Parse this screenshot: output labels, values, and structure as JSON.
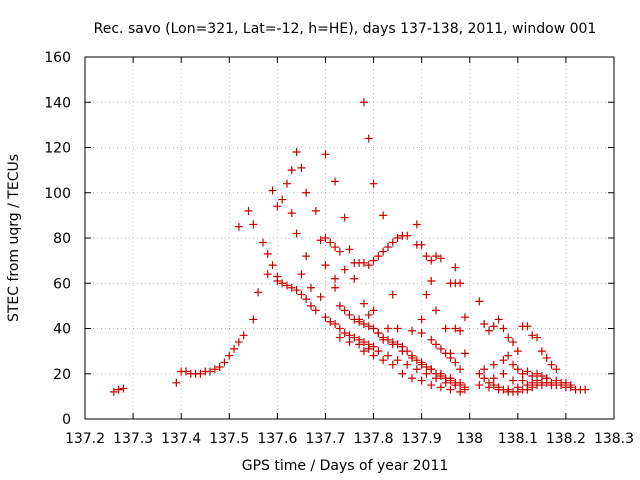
{
  "chart_data": {
    "type": "scatter",
    "title": "Rec. savo (Lon=321, Lat=-12, h=HE), days 137-138, 2011, window 001",
    "xlabel": "GPS time / Days of year 2011",
    "ylabel": "STEC from uqrg / TECUs",
    "xlim": [
      137.2,
      138.3
    ],
    "ylim": [
      0,
      160
    ],
    "xticks": [
      137.2,
      137.3,
      137.4,
      137.5,
      137.6,
      137.7,
      137.8,
      137.9,
      138,
      138.1,
      138.2,
      138.3
    ],
    "xtick_labels": [
      "137.2",
      "137.3",
      "137.4",
      "137.5",
      "137.6",
      "137.7",
      "137.8",
      "137.9",
      "138",
      "138.1",
      "138.2",
      "138.3"
    ],
    "yticks": [
      0,
      20,
      40,
      60,
      80,
      100,
      120,
      140,
      160
    ],
    "ytick_labels": [
      "0",
      "20",
      "40",
      "60",
      "80",
      "100",
      "120",
      "140",
      "160"
    ],
    "grid": true,
    "marker": "+",
    "color": "#cc0000",
    "points": [
      [
        137.26,
        12
      ],
      [
        137.27,
        13
      ],
      [
        137.28,
        13.5
      ],
      [
        137.39,
        16
      ],
      [
        137.4,
        21
      ],
      [
        137.41,
        21
      ],
      [
        137.42,
        20
      ],
      [
        137.43,
        20
      ],
      [
        137.44,
        20
      ],
      [
        137.45,
        21
      ],
      [
        137.46,
        21
      ],
      [
        137.47,
        22
      ],
      [
        137.48,
        23
      ],
      [
        137.49,
        25
      ],
      [
        137.5,
        28
      ],
      [
        137.51,
        31
      ],
      [
        137.52,
        34
      ],
      [
        137.53,
        37
      ],
      [
        137.52,
        85
      ],
      [
        137.54,
        92
      ],
      [
        137.55,
        86
      ],
      [
        137.55,
        44
      ],
      [
        137.56,
        56
      ],
      [
        137.57,
        78
      ],
      [
        137.58,
        73
      ],
      [
        137.59,
        68
      ],
      [
        137.6,
        63
      ],
      [
        137.61,
        60
      ],
      [
        137.63,
        58
      ],
      [
        137.64,
        57
      ],
      [
        137.65,
        55
      ],
      [
        137.66,
        53
      ],
      [
        137.67,
        50
      ],
      [
        137.68,
        48
      ],
      [
        137.59,
        101
      ],
      [
        137.6,
        94
      ],
      [
        137.61,
        97
      ],
      [
        137.62,
        104
      ],
      [
        137.63,
        91
      ],
      [
        137.64,
        118
      ],
      [
        137.63,
        110
      ],
      [
        137.65,
        111
      ],
      [
        137.64,
        82
      ],
      [
        137.66,
        100
      ],
      [
        137.66,
        72
      ],
      [
        137.68,
        92
      ],
      [
        137.69,
        79
      ],
      [
        137.7,
        117
      ],
      [
        137.7,
        68
      ],
      [
        137.72,
        105
      ],
      [
        137.58,
        64
      ],
      [
        137.6,
        61
      ],
      [
        137.62,
        59
      ],
      [
        137.65,
        64
      ],
      [
        137.67,
        58
      ],
      [
        137.69,
        54
      ],
      [
        137.7,
        45
      ],
      [
        137.71,
        43
      ],
      [
        137.72,
        42
      ],
      [
        137.73,
        40
      ],
      [
        137.74,
        38
      ],
      [
        137.75,
        37
      ],
      [
        137.76,
        36
      ],
      [
        137.77,
        35
      ],
      [
        137.78,
        34
      ],
      [
        137.79,
        33
      ],
      [
        137.8,
        32
      ],
      [
        137.7,
        80
      ],
      [
        137.71,
        78
      ],
      [
        137.72,
        76
      ],
      [
        137.73,
        74
      ],
      [
        137.74,
        89
      ],
      [
        137.75,
        75
      ],
      [
        137.76,
        69
      ],
      [
        137.77,
        69
      ],
      [
        137.78,
        69
      ],
      [
        137.79,
        68
      ],
      [
        137.8,
        70
      ],
      [
        137.81,
        72
      ],
      [
        137.82,
        74
      ],
      [
        137.83,
        76
      ],
      [
        137.84,
        78
      ],
      [
        137.85,
        80
      ],
      [
        137.86,
        81
      ],
      [
        137.87,
        81
      ],
      [
        137.89,
        86
      ],
      [
        137.89,
        77
      ],
      [
        137.9,
        77
      ],
      [
        137.91,
        72
      ],
      [
        137.92,
        70
      ],
      [
        137.93,
        72
      ],
      [
        137.94,
        71
      ],
      [
        137.78,
        140
      ],
      [
        137.79,
        124
      ],
      [
        137.8,
        104
      ],
      [
        137.82,
        90
      ],
      [
        137.84,
        55
      ],
      [
        137.72,
        58
      ],
      [
        137.73,
        50
      ],
      [
        137.74,
        48
      ],
      [
        137.75,
        46
      ],
      [
        137.76,
        44
      ],
      [
        137.77,
        43
      ],
      [
        137.78,
        42
      ],
      [
        137.79,
        41
      ],
      [
        137.8,
        40
      ],
      [
        137.81,
        38
      ],
      [
        137.82,
        36
      ],
      [
        137.83,
        35
      ],
      [
        137.84,
        34
      ],
      [
        137.85,
        33
      ],
      [
        137.86,
        32
      ],
      [
        137.87,
        30
      ],
      [
        137.88,
        28
      ],
      [
        137.89,
        26
      ],
      [
        137.9,
        24
      ],
      [
        137.91,
        23
      ],
      [
        137.92,
        22
      ],
      [
        137.93,
        20
      ],
      [
        137.94,
        19
      ],
      [
        137.95,
        18
      ],
      [
        137.96,
        17
      ],
      [
        137.97,
        16
      ],
      [
        137.98,
        15
      ],
      [
        137.99,
        14
      ],
      [
        137.73,
        36
      ],
      [
        137.75,
        34
      ],
      [
        137.77,
        33
      ],
      [
        137.79,
        31
      ],
      [
        137.81,
        30
      ],
      [
        137.83,
        28
      ],
      [
        137.85,
        26
      ],
      [
        137.87,
        24
      ],
      [
        137.89,
        22
      ],
      [
        137.91,
        20
      ],
      [
        137.93,
        18
      ],
      [
        137.95,
        16
      ],
      [
        137.97,
        15
      ],
      [
        137.99,
        13
      ],
      [
        137.78,
        30
      ],
      [
        137.8,
        28
      ],
      [
        137.82,
        26
      ],
      [
        137.84,
        24
      ],
      [
        137.86,
        20
      ],
      [
        137.88,
        18
      ],
      [
        137.9,
        17
      ],
      [
        137.92,
        15
      ],
      [
        137.94,
        14
      ],
      [
        137.96,
        13
      ],
      [
        137.98,
        12
      ],
      [
        137.82,
        35
      ],
      [
        137.84,
        33
      ],
      [
        137.86,
        30
      ],
      [
        137.88,
        27
      ],
      [
        137.9,
        25
      ],
      [
        137.92,
        22
      ],
      [
        137.94,
        20
      ],
      [
        137.96,
        18
      ],
      [
        137.98,
        16
      ],
      [
        137.88,
        39
      ],
      [
        137.9,
        38
      ],
      [
        137.92,
        35
      ],
      [
        137.93,
        33
      ],
      [
        137.94,
        31
      ],
      [
        137.95,
        29
      ],
      [
        137.96,
        27
      ],
      [
        137.97,
        25
      ],
      [
        137.98,
        22
      ],
      [
        137.9,
        44
      ],
      [
        137.91,
        55
      ],
      [
        137.92,
        61
      ],
      [
        137.93,
        48
      ],
      [
        137.95,
        40
      ],
      [
        137.96,
        60
      ],
      [
        137.97,
        67
      ],
      [
        137.97,
        60
      ],
      [
        137.98,
        60
      ],
      [
        137.98,
        39
      ],
      [
        137.99,
        45
      ],
      [
        137.99,
        29
      ],
      [
        137.97,
        40
      ],
      [
        137.96,
        29
      ],
      [
        137.72,
        62
      ],
      [
        137.74,
        66
      ],
      [
        137.76,
        62
      ],
      [
        137.78,
        51
      ],
      [
        137.77,
        44
      ],
      [
        137.79,
        46
      ],
      [
        137.8,
        48
      ],
      [
        137.81,
        38
      ],
      [
        137.83,
        40
      ],
      [
        137.85,
        40
      ],
      [
        138.02,
        52
      ],
      [
        138.03,
        42
      ],
      [
        138.04,
        39
      ],
      [
        138.05,
        41
      ],
      [
        138.06,
        44
      ],
      [
        138.07,
        40
      ],
      [
        138.08,
        36
      ],
      [
        138.09,
        34
      ],
      [
        138.1,
        30
      ],
      [
        138.11,
        41
      ],
      [
        138.12,
        41
      ],
      [
        138.13,
        37
      ],
      [
        138.14,
        36
      ],
      [
        138.15,
        30
      ],
      [
        138.16,
        27
      ],
      [
        138.17,
        24
      ],
      [
        138.18,
        22
      ],
      [
        138.02,
        20
      ],
      [
        138.03,
        18
      ],
      [
        138.04,
        16
      ],
      [
        138.05,
        15
      ],
      [
        138.06,
        14
      ],
      [
        138.07,
        13
      ],
      [
        138.08,
        13
      ],
      [
        138.09,
        12
      ],
      [
        138.1,
        12
      ],
      [
        138.11,
        13
      ],
      [
        138.12,
        13
      ],
      [
        138.13,
        14
      ],
      [
        138.14,
        15
      ],
      [
        138.15,
        16
      ],
      [
        138.16,
        16
      ],
      [
        138.17,
        16
      ],
      [
        138.18,
        15
      ],
      [
        138.19,
        15
      ],
      [
        138.2,
        14
      ],
      [
        138.21,
        14
      ],
      [
        138.22,
        13
      ],
      [
        138.23,
        13
      ],
      [
        138.24,
        13
      ],
      [
        138.02,
        15
      ],
      [
        138.04,
        14
      ],
      [
        138.06,
        13
      ],
      [
        138.08,
        12
      ],
      [
        138.1,
        14
      ],
      [
        138.12,
        15
      ],
      [
        138.14,
        17
      ],
      [
        138.16,
        18
      ],
      [
        138.18,
        17
      ],
      [
        138.2,
        16
      ],
      [
        138.03,
        22
      ],
      [
        138.05,
        24
      ],
      [
        138.07,
        26
      ],
      [
        138.08,
        28
      ],
      [
        138.09,
        24
      ],
      [
        138.1,
        22
      ],
      [
        138.11,
        20
      ],
      [
        138.12,
        21
      ],
      [
        138.13,
        19
      ],
      [
        138.14,
        20
      ],
      [
        138.15,
        19
      ],
      [
        138.16,
        18
      ],
      [
        138.05,
        18
      ],
      [
        138.07,
        20
      ],
      [
        138.09,
        17
      ],
      [
        138.11,
        17
      ],
      [
        138.13,
        16
      ],
      [
        138.15,
        15
      ],
      [
        138.17,
        15
      ],
      [
        138.19,
        16
      ],
      [
        138.21,
        15
      ]
    ]
  }
}
